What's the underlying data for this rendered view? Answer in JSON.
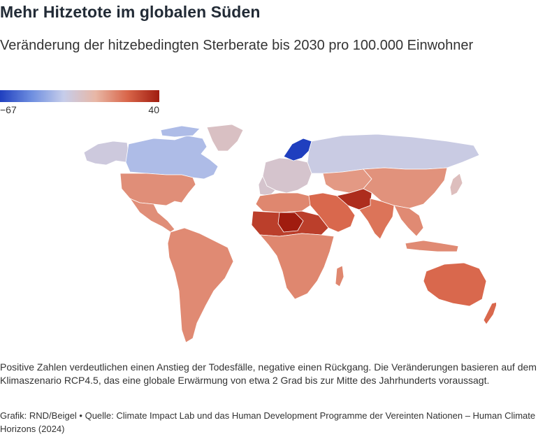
{
  "title": "Mehr Hitzetote im globalen Süden",
  "subtitle": "Veränderung der hitzebedingten Sterberate bis 2030 pro 100.000 Einwohner",
  "legend": {
    "min_label": "−67",
    "max_label": "40",
    "min_value": -67,
    "max_value": 40,
    "colors": [
      "#1f3fbf",
      "#6f8fe0",
      "#c6cdea",
      "#e8b7a6",
      "#d9664a",
      "#a01c0f"
    ]
  },
  "map": {
    "regions": [
      {
        "name": "Kanada",
        "value": -30
      },
      {
        "name": "Alaska",
        "value": -20
      },
      {
        "name": "Grönland",
        "value": -12
      },
      {
        "name": "Vereinigte Staaten",
        "value": 8
      },
      {
        "name": "Mexiko und Mittelamerika",
        "value": 8
      },
      {
        "name": "Südamerika",
        "value": 9
      },
      {
        "name": "Skandinavien",
        "value": -67
      },
      {
        "name": "Europa",
        "value": -15
      },
      {
        "name": "Russland",
        "value": -22
      },
      {
        "name": "Zentralasien",
        "value": 5
      },
      {
        "name": "China",
        "value": 7
      },
      {
        "name": "Indien",
        "value": 15
      },
      {
        "name": "Pakistan",
        "value": 35
      },
      {
        "name": "Arabische Halbinsel",
        "value": 18
      },
      {
        "name": "Sahelzone",
        "value": 30
      },
      {
        "name": "Niger",
        "value": 40
      },
      {
        "name": "Afrika",
        "value": 10
      },
      {
        "name": "Südostasien",
        "value": 9
      },
      {
        "name": "Australien",
        "value": 18
      },
      {
        "name": "Japan",
        "value": -10
      }
    ]
  },
  "note": "Positive Zahlen verdeutlichen einen Anstieg der Todesfälle, negative einen Rückgang. Die Veränderungen basieren auf dem Klimaszenario RCP4.5, das eine globale Erwärmung von etwa 2 Grad bis zur Mitte des Jahrhunderts voraussagt.",
  "credit": "Grafik: RND/Beigel • Quelle: Climate Impact Lab und das Human Development Programme der Vereinten Nationen – Human Climate Horizons (2024)"
}
